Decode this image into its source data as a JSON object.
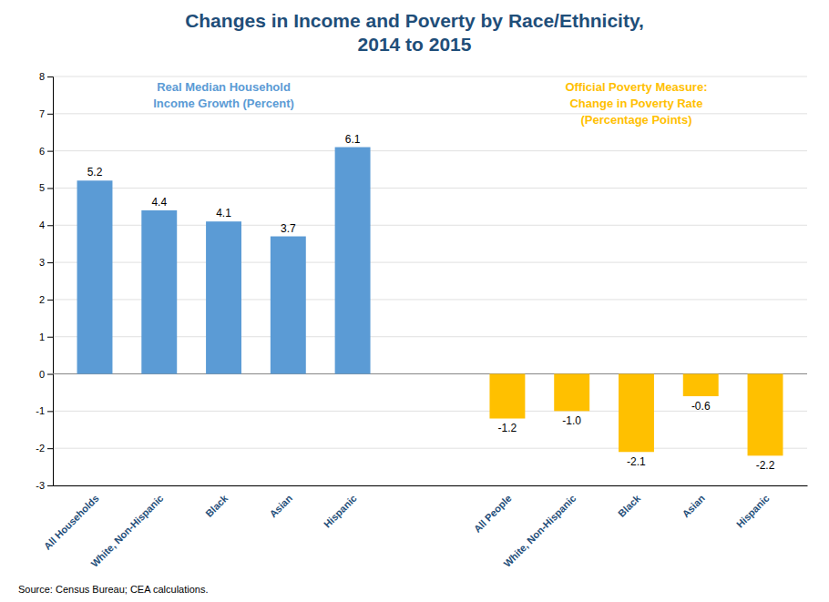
{
  "chart_data": {
    "type": "bar",
    "title": "Changes in Income and Poverty by Race/Ethnicity,\n2014 to 2015",
    "categories": [
      "All Households",
      "White, Non-Hispanic",
      "Black",
      "Asian",
      "Hispanic",
      "All People",
      "White, Non-Hispanic",
      "Black",
      "Asian",
      "Hispanic"
    ],
    "series": [
      {
        "name": "Real Median Household\nIncome Growth (Percent)",
        "color": "#5B9BD5",
        "values": [
          5.2,
          4.4,
          4.1,
          3.7,
          6.1,
          null,
          null,
          null,
          null,
          null
        ],
        "value_labels": [
          "5.2",
          "4.4",
          "4.1",
          "3.7",
          "6.1",
          null,
          null,
          null,
          null,
          null
        ]
      },
      {
        "name": "Official Poverty Measure:\nChange in Poverty Rate\n(Percentage Points)",
        "color": "#FFC000",
        "values": [
          null,
          null,
          null,
          null,
          null,
          -1.2,
          -1.0,
          -2.1,
          -0.6,
          -2.2
        ],
        "value_labels": [
          null,
          null,
          null,
          null,
          null,
          "-1.2",
          "-1.0",
          "-2.1",
          "-0.6",
          "-2.2"
        ]
      }
    ],
    "ylim": [
      -3,
      8
    ],
    "yticks": [
      -3,
      -2,
      -1,
      0,
      1,
      2,
      3,
      4,
      5,
      6,
      7,
      8
    ],
    "grid": true,
    "data_labels": true,
    "annotations": [
      "Source: Census Bureau; CEA calculations."
    ]
  }
}
